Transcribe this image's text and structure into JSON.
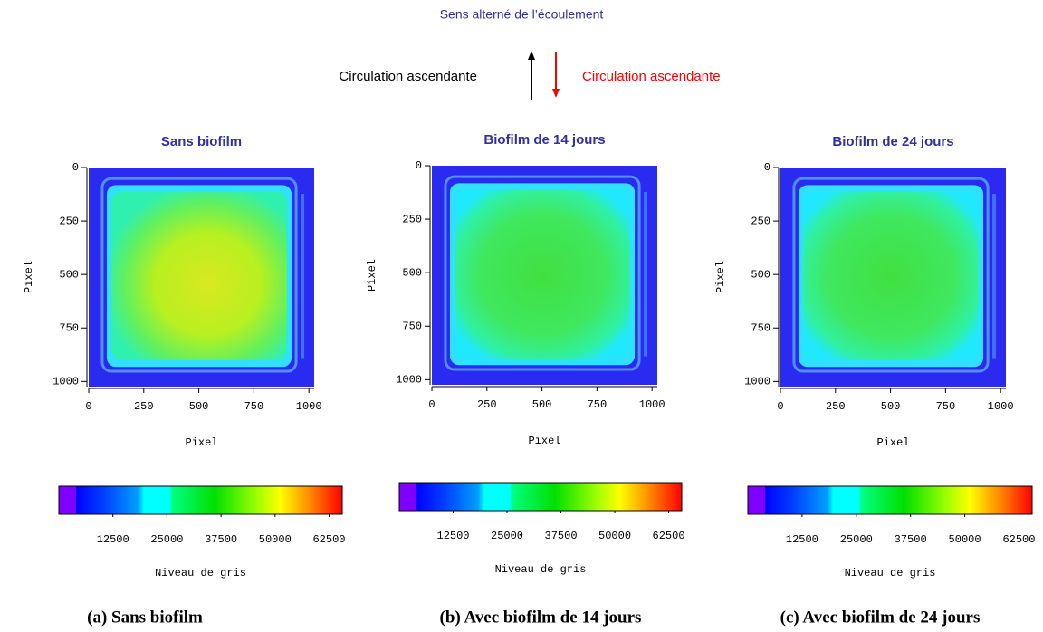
{
  "header": {
    "title": "Sens alterné de l’écoulement",
    "left_label": "Circulation ascendante",
    "right_label": "Circulation ascendante"
  },
  "chart_data": [
    {
      "type": "heatmap",
      "title": "Sans biofilm",
      "xlabel": "Pixel",
      "ylabel": "Pixel",
      "xlim": [
        0,
        1024
      ],
      "ylim": [
        0,
        1024
      ],
      "y_inverted": true,
      "xticks": [
        0,
        250,
        500,
        750,
        1000
      ],
      "yticks": [
        0,
        250,
        500,
        750,
        1000
      ],
      "colorbar": {
        "label": "Niveau de gris",
        "lim": [
          0,
          65535
        ],
        "ticks": [
          12500,
          25000,
          37500,
          50000,
          62500
        ]
      },
      "caption": "(a) Sans biofilm"
    },
    {
      "type": "heatmap",
      "title": "Biofilm de 14 jours",
      "xlabel": "Pixel",
      "ylabel": "Pixel",
      "xlim": [
        0,
        1024
      ],
      "ylim": [
        0,
        1024
      ],
      "y_inverted": true,
      "xticks": [
        0,
        250,
        500,
        750,
        1000
      ],
      "yticks": [
        0,
        250,
        500,
        750,
        1000
      ],
      "colorbar": {
        "label": "Niveau de gris",
        "lim": [
          0,
          65535
        ],
        "ticks": [
          12500,
          25000,
          37500,
          50000,
          62500
        ]
      },
      "caption": "(b) Avec biofilm de 14 jours"
    },
    {
      "type": "heatmap",
      "title": "Biofilm de 24 jours",
      "xlabel": "Pixel",
      "ylabel": "Pixel",
      "xlim": [
        0,
        1024
      ],
      "ylim": [
        0,
        1024
      ],
      "y_inverted": true,
      "xticks": [
        0,
        250,
        500,
        750,
        1000
      ],
      "yticks": [
        0,
        250,
        500,
        750,
        1000
      ],
      "colorbar": {
        "label": "Niveau de gris",
        "lim": [
          0,
          65535
        ],
        "ticks": [
          12500,
          25000,
          37500,
          50000,
          62500
        ]
      },
      "caption": "(c) Avec biofilm de 24 jours"
    }
  ]
}
